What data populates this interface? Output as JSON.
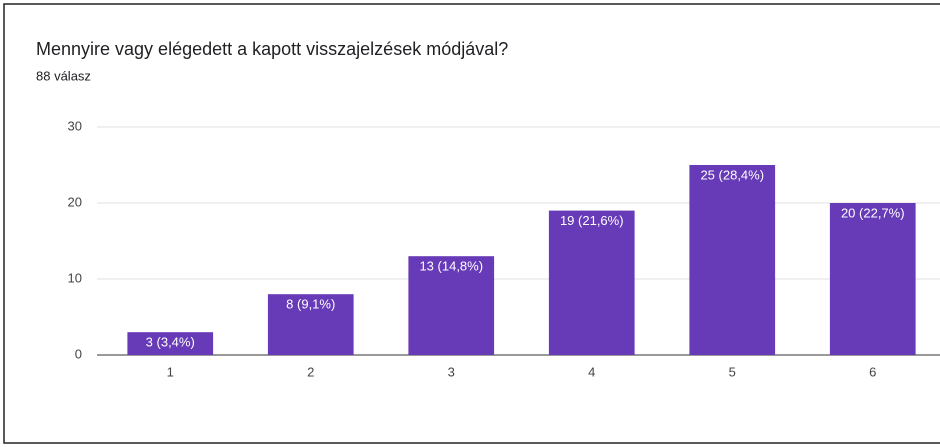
{
  "chart_data": {
    "type": "bar",
    "title": "Mennyire vagy elégedett a kapott visszajelzések módjával?",
    "subtitle": "88 válasz",
    "categories": [
      "1",
      "2",
      "3",
      "4",
      "5",
      "6"
    ],
    "values": [
      3,
      8,
      13,
      19,
      25,
      20
    ],
    "value_labels": [
      "3 (3,4%)",
      "8 (9,1%)",
      "13 (14,8%)",
      "19 (21,6%)",
      "25 (28,4%)",
      "20 (22,7%)"
    ],
    "color": "#673ab7",
    "ylim": [
      0,
      30
    ],
    "yticks": [
      0,
      10,
      20,
      30
    ],
    "grid": true
  }
}
